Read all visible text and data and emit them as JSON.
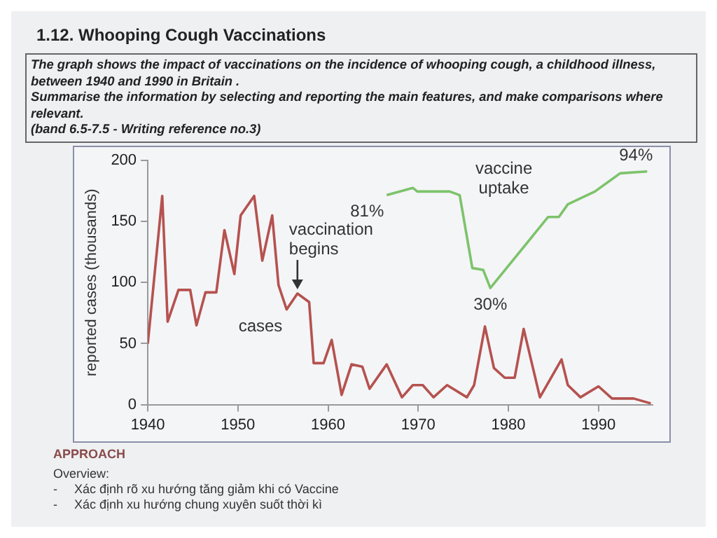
{
  "chart_data": {
    "type": "line",
    "title": "1.12. Whooping Cough Vaccinations",
    "subtitle": "The graph shows the impact of vaccinations on the incidence of whooping cough, a childhood illness, between 1940 and 1990 in Britain .\nSummarise the information by selecting and reporting the main features, and make comparisons where relevant.\n(band 6.5-7.5 - Writing reference no.3)",
    "ylabel": "reported cases (thousands)",
    "xlim": [
      1940,
      1996
    ],
    "xticks": [
      1940,
      1950,
      1960,
      1970,
      1980,
      1990
    ],
    "ylim": [
      0,
      200
    ],
    "yticks": [
      0,
      50,
      100,
      150,
      200
    ],
    "y2lim": [
      -34,
      100
    ],
    "legend": false,
    "series": [
      {
        "name": "cases",
        "color": "#b5524f",
        "x": [
          1940,
          1941.6,
          1942.2,
          1943.4,
          1944.7,
          1945.4,
          1946.4,
          1947.6,
          1948.5,
          1949.6,
          1950.3,
          1951.8,
          1952.7,
          1953.8,
          1954.5,
          1955.4,
          1956.6,
          1957.9,
          1958.4,
          1959.5,
          1960.4,
          1961.5,
          1962.6,
          1963.8,
          1964.6,
          1966.5,
          1968.2,
          1969.4,
          1970.5,
          1971.7,
          1973.2,
          1975.4,
          1976.2,
          1977.4,
          1978.4,
          1979.6,
          1980.7,
          1981.7,
          1983.5,
          1985.9,
          1986.6,
          1988,
          1990,
          1991.5,
          1993.9,
          1995.8
        ],
        "values": [
          50,
          171,
          68,
          94,
          94,
          65,
          92,
          92,
          143,
          107,
          155,
          171,
          118,
          155,
          98,
          78,
          91,
          84,
          34,
          34,
          53,
          8,
          33,
          31,
          13,
          33,
          6,
          16,
          16,
          6,
          16,
          6,
          16,
          64,
          30,
          22,
          22,
          62,
          6,
          37,
          16,
          6,
          15,
          5,
          5,
          1
        ]
      },
      {
        "name": "vaccine uptake",
        "color": "#7dc36b",
        "axis": "y2",
        "x": [
          1966.5,
          1969.4,
          1969.9,
          1973.5,
          1974.6,
          1976,
          1977.2,
          1978,
          1984.4,
          1985.6,
          1986.6,
          1989.6,
          1992.4,
          1995.4
        ],
        "values": [
          81,
          85,
          83,
          83,
          81,
          41,
          40,
          30,
          69,
          69,
          76,
          83,
          93,
          94
        ],
        "value_labels": [
          "81%",
          null,
          null,
          null,
          null,
          null,
          null,
          "30%",
          null,
          null,
          null,
          null,
          null,
          "94%"
        ]
      }
    ],
    "annotations": [
      {
        "text": "vaccination begins",
        "x": 1956.6,
        "y": 91
      },
      "APPROACH",
      "Overview:",
      "-\tXác định rõ xu hướng tăng giảm khi có Vaccine",
      "-\tXác định xu hướng chung xuyên suốt thời kì"
    ]
  }
}
